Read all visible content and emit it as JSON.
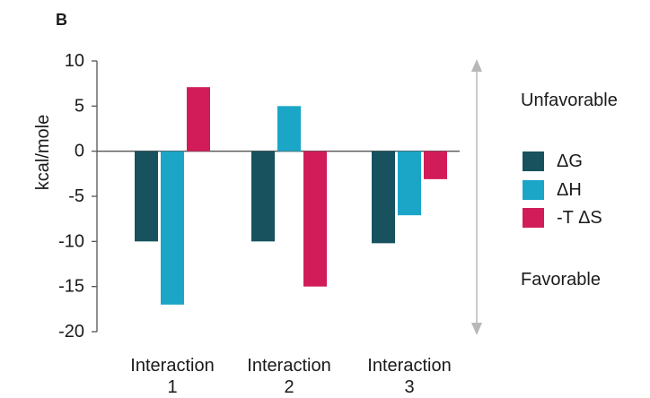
{
  "panel_label": "B",
  "annotations": {
    "unfavorable": "Unfavorable",
    "favorable": "Favorable"
  },
  "chart_data": {
    "type": "bar",
    "title": "",
    "xlabel": "",
    "ylabel": "kcal/mole",
    "ylim": [
      -20,
      10
    ],
    "yticks": [
      10,
      5,
      0,
      -5,
      -10,
      -15,
      -20
    ],
    "categories": [
      [
        "Interaction",
        "1"
      ],
      [
        "Interaction",
        "2"
      ],
      [
        "Interaction",
        "3"
      ]
    ],
    "series": [
      {
        "name": "ΔG",
        "color": "#17525e",
        "values": [
          -10,
          -10,
          -10.2
        ]
      },
      {
        "name": "ΔH",
        "color": "#1ba6c8",
        "values": [
          -17,
          5,
          -7.1
        ]
      },
      {
        "name": "-T ΔS",
        "color": "#d21c5a",
        "values": [
          7.1,
          -15,
          -3.1
        ]
      }
    ],
    "grid": false,
    "legend_position": "right"
  }
}
